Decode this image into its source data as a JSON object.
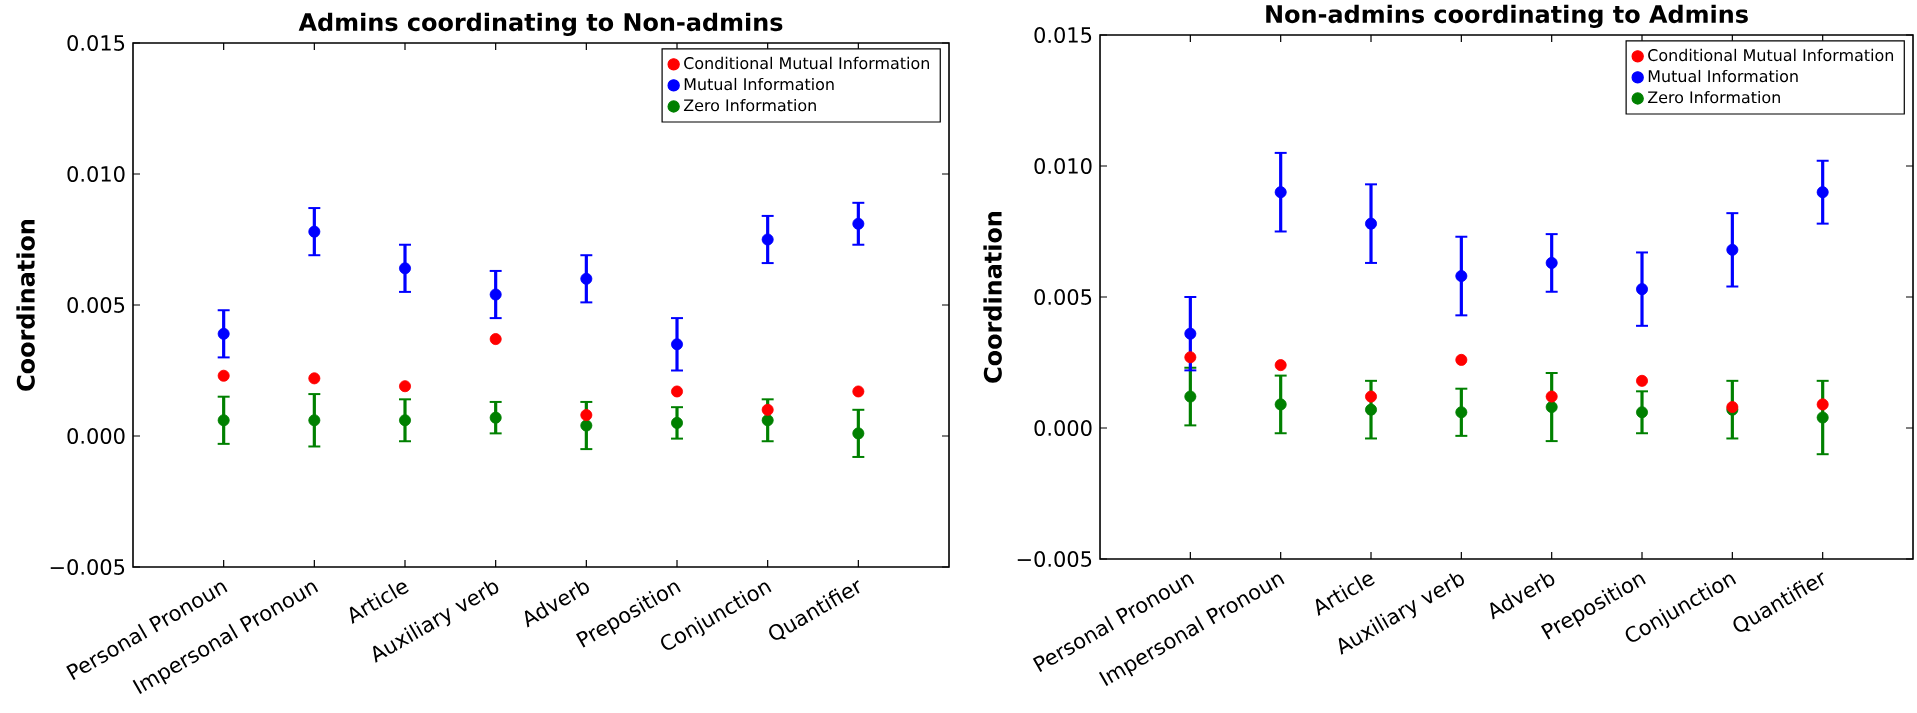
{
  "chart_data": [
    {
      "type": "scatter",
      "title": "Admins coordinating to Non-admins",
      "ylabel": "Coordination",
      "categories": [
        "Personal Pronoun",
        "Impersonal Pronoun",
        "Article",
        "Auxiliary verb",
        "Adverb",
        "Preposition",
        "Conjunction",
        "Quantifier"
      ],
      "series": [
        {
          "name": "Conditional Mutual Information",
          "color": "#ff0000",
          "values": [
            0.0023,
            0.0022,
            0.0019,
            0.0037,
            0.0008,
            0.0017,
            0.001,
            0.0017
          ]
        },
        {
          "name": "Mutual Information",
          "color": "#0000ff",
          "values": [
            0.0039,
            0.0078,
            0.0064,
            0.0054,
            0.006,
            0.0035,
            0.0075,
            0.0081
          ],
          "errors": [
            0.0009,
            0.0009,
            0.0009,
            0.0009,
            0.0009,
            0.001,
            0.0009,
            0.0008
          ]
        },
        {
          "name": "Zero Information",
          "color": "#008000",
          "values": [
            0.0006,
            0.0006,
            0.0006,
            0.0007,
            0.0004,
            0.0005,
            0.0006,
            0.0001
          ],
          "errors": [
            0.0009,
            0.001,
            0.0008,
            0.0006,
            0.0009,
            0.0006,
            0.0008,
            0.0009
          ]
        }
      ],
      "ylim": [
        -0.005,
        0.015
      ],
      "yticks": [
        {
          "value": -0.005,
          "label": "−0.005"
        },
        {
          "value": 0,
          "label": "0.000"
        },
        {
          "value": 0.005,
          "label": "0.005"
        },
        {
          "value": 0.01,
          "label": "0.010"
        },
        {
          "value": 0.015,
          "label": "0.015"
        }
      ],
      "legend": "top right",
      "marker": "circle"
    },
    {
      "type": "scatter",
      "title": "Non-admins coordinating to Admins",
      "ylabel": "Coordination",
      "categories": [
        "Personal Pronoun",
        "Impersonal Pronoun",
        "Article",
        "Auxiliary verb",
        "Adverb",
        "Preposition",
        "Conjunction",
        "Quantifier"
      ],
      "series": [
        {
          "name": "Conditional Mutual Information",
          "color": "#ff0000",
          "values": [
            0.0027,
            0.0024,
            0.0012,
            0.0026,
            0.0012,
            0.0018,
            0.0008,
            0.0009
          ]
        },
        {
          "name": "Mutual Information",
          "color": "#0000ff",
          "values": [
            0.0036,
            0.009,
            0.0078,
            0.0058,
            0.0063,
            0.0053,
            0.0068,
            0.009
          ],
          "errors": [
            0.0014,
            0.0015,
            0.0015,
            0.0015,
            0.0011,
            0.0014,
            0.0014,
            0.0012
          ]
        },
        {
          "name": "Zero Information",
          "color": "#008000",
          "values": [
            0.0012,
            0.0009,
            0.0007,
            0.0006,
            0.0008,
            0.0006,
            0.0007,
            0.0004
          ],
          "errors": [
            0.0011,
            0.0011,
            0.0011,
            0.0009,
            0.0013,
            0.0008,
            0.0011,
            0.0014
          ]
        }
      ],
      "ylim": [
        -0.005,
        0.015
      ],
      "yticks": [
        {
          "value": -0.005,
          "label": "−0.005"
        },
        {
          "value": 0,
          "label": "0.000"
        },
        {
          "value": 0.005,
          "label": "0.005"
        },
        {
          "value": 0.01,
          "label": "0.010"
        },
        {
          "value": 0.015,
          "label": "0.015"
        }
      ],
      "legend": "top right",
      "marker": "circle"
    }
  ]
}
